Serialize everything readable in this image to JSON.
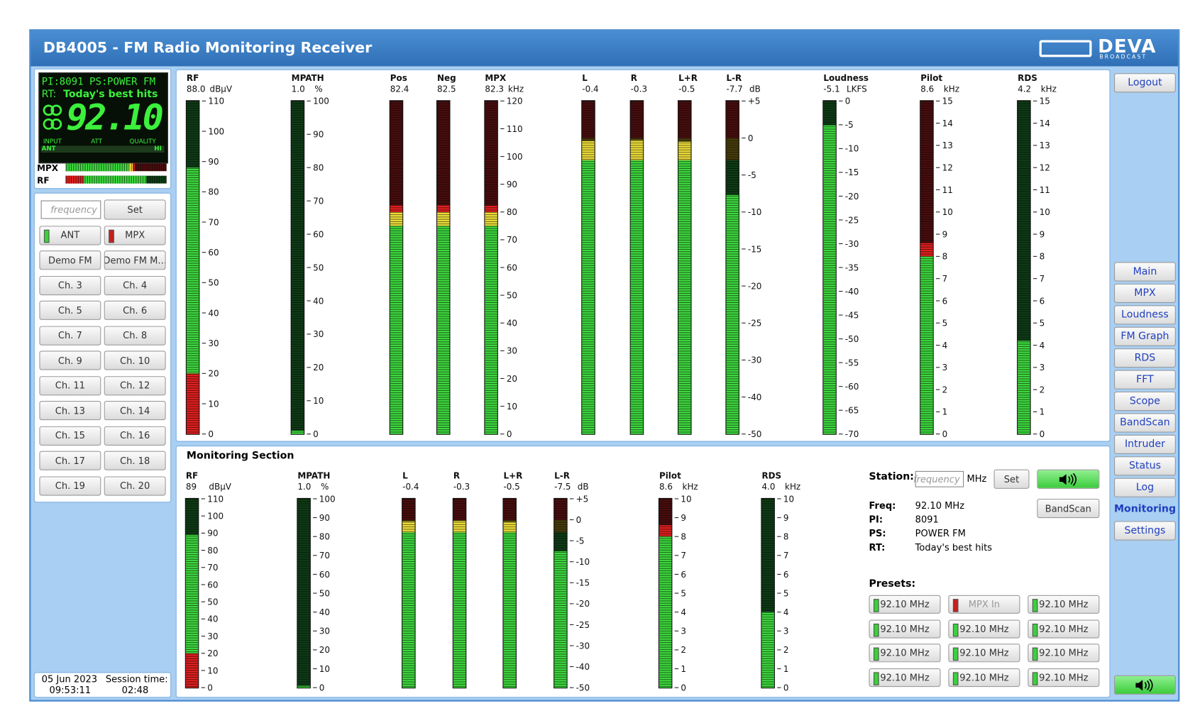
{
  "header": {
    "title": "DB4005 - FM Radio Monitoring Receiver",
    "logo": "DEVA",
    "logo_sub": "BROADCAST"
  },
  "display": {
    "pi_label": "PI:",
    "pi": "8091",
    "ps_label": "PS:",
    "ps": "POWER FM",
    "rt_label": "RT:",
    "rt": "Today's best hits",
    "frequency": "92.10",
    "scale_labels": [
      "INPUT",
      "ATT",
      "QUALITY"
    ],
    "ant": "ANT",
    "hi": "HI",
    "mini_labels": [
      "MPX",
      "RF"
    ]
  },
  "tuner": {
    "input_placeholder": "frequency",
    "set": "Set",
    "buttons": [
      {
        "label": "ANT",
        "led": "#3ad13a"
      },
      {
        "label": "MPX",
        "led": "#c81e1e"
      },
      {
        "label": "Demo FM"
      },
      {
        "label": "Demo FM M..."
      },
      {
        "label": "Ch. 3"
      },
      {
        "label": "Ch. 4"
      },
      {
        "label": "Ch. 5"
      },
      {
        "label": "Ch. 6"
      },
      {
        "label": "Ch. 7"
      },
      {
        "label": "Ch. 8"
      },
      {
        "label": "Ch. 9"
      },
      {
        "label": "Ch. 10"
      },
      {
        "label": "Ch. 11"
      },
      {
        "label": "Ch. 12"
      },
      {
        "label": "Ch. 13"
      },
      {
        "label": "Ch. 14"
      },
      {
        "label": "Ch. 15"
      },
      {
        "label": "Ch. 16"
      },
      {
        "label": "Ch. 17"
      },
      {
        "label": "Ch. 18"
      },
      {
        "label": "Ch. 19"
      },
      {
        "label": "Ch. 20"
      }
    ]
  },
  "status": {
    "date": "05 Jun 2023",
    "time": "09:53:11",
    "session_label": "Session time:",
    "session": "02:48"
  },
  "nav": {
    "logout": "Logout",
    "items": [
      {
        "label": "Main"
      },
      {
        "label": "MPX"
      },
      {
        "label": "Loudness"
      },
      {
        "label": "FM Graph"
      },
      {
        "label": "RDS"
      },
      {
        "label": "FFT"
      },
      {
        "label": "Scope"
      },
      {
        "label": "BandScan"
      },
      {
        "label": "Intruder"
      },
      {
        "label": "Status"
      },
      {
        "label": "Log"
      },
      {
        "label": "Monitoring",
        "active": true
      },
      {
        "label": "Settings"
      }
    ]
  },
  "meters_top": [
    {
      "name": "RF",
      "value": {
        "value": 88.0,
        "label": "88.0"
      },
      "unit": "dBµV",
      "ticks": [
        0,
        10,
        20,
        30,
        40,
        50,
        60,
        70,
        80,
        90,
        100,
        110
      ],
      "low_alarm": 20
    },
    {
      "name": "MPATH",
      "value": {
        "value": 1.0,
        "label": "1.0"
      },
      "unit": "%",
      "ticks": [
        0,
        10,
        20,
        30,
        40,
        50,
        60,
        70,
        80,
        90,
        100
      ]
    },
    {
      "name": "Pos",
      "value": 82.4,
      "warn": 75,
      "alarm": 80
    },
    {
      "name": "Neg",
      "value": 82.5,
      "warn": 75,
      "alarm": 80
    },
    {
      "name": "MPX",
      "value": 82.3,
      "unit": "kHz",
      "ticks": [
        0,
        10,
        20,
        30,
        40,
        50,
        60,
        70,
        80,
        90,
        100,
        110,
        120
      ],
      "warn": 75,
      "alarm": 80
    },
    {
      "name": "L",
      "value": -0.4,
      "warn": -3,
      "alarm": 0
    },
    {
      "name": "R",
      "value": -0.3,
      "warn": -3,
      "alarm": 0
    },
    {
      "name": "L+R",
      "value": -0.5,
      "warn": -3,
      "alarm": 0
    },
    {
      "name": "L-R",
      "value": -7.7,
      "unit": "dB",
      "ticks": [
        -50,
        -40,
        -30,
        -25,
        -20,
        -15,
        -10,
        -5,
        0,
        {
          "value": 5,
          "label": "+5"
        }
      ],
      "warn": -3,
      "alarm": 0
    },
    {
      "name": "Loudness",
      "value": -5.1,
      "unit": "LKFS",
      "ticks": [
        -70,
        -65,
        -60,
        -55,
        -50,
        -45,
        -40,
        -35,
        -30,
        -25,
        -20,
        -15,
        -10,
        -5,
        0
      ]
    },
    {
      "name": "Pilot",
      "value": 8.6,
      "unit": "kHz",
      "ticks": [
        0,
        1,
        2,
        3,
        4,
        5,
        6,
        7,
        8,
        9,
        10,
        11,
        12,
        13,
        14,
        15
      ],
      "alarm": 8
    },
    {
      "name": "RDS",
      "value": 4.2,
      "unit": "kHz",
      "ticks": [
        0,
        1,
        2,
        3,
        4,
        5,
        6,
        7,
        8,
        9,
        10,
        11,
        12,
        13,
        14,
        15
      ]
    }
  ],
  "monitoring": {
    "title": "Monitoring Section",
    "meters": [
      {
        "name": "RF",
        "value": 89,
        "unit": "dBµV",
        "ticks": [
          0,
          10,
          20,
          30,
          40,
          50,
          60,
          70,
          80,
          90,
          100,
          110
        ],
        "low_alarm": 20
      },
      {
        "name": "MPATH",
        "value": {
          "value": 1.0,
          "label": "1.0"
        },
        "unit": "%",
        "ticks": [
          0,
          10,
          20,
          30,
          40,
          50,
          60,
          70,
          80,
          90,
          100
        ]
      },
      {
        "name": "L",
        "value": -0.4,
        "warn": -3,
        "alarm": 0
      },
      {
        "name": "R",
        "value": -0.3,
        "warn": -3,
        "alarm": 0
      },
      {
        "name": "L+R",
        "value": -0.5,
        "warn": -3,
        "alarm": 0
      },
      {
        "name": "L-R",
        "value": -7.5,
        "unit": "dB",
        "ticks": [
          -50,
          -40,
          -30,
          -25,
          -20,
          -15,
          -10,
          -5,
          0,
          {
            "value": 5,
            "label": "+5"
          }
        ],
        "warn": -3,
        "alarm": 0
      },
      {
        "name": "Pilot",
        "value": 8.6,
        "unit": "kHz",
        "ticks": [
          0,
          1,
          2,
          3,
          4,
          5,
          6,
          7,
          8,
          9,
          10
        ],
        "alarm": 8
      },
      {
        "name": "RDS",
        "value": {
          "value": 4.0,
          "label": "4.0"
        },
        "unit": "kHz",
        "ticks": [
          0,
          1,
          2,
          3,
          4,
          5,
          6,
          7,
          8,
          9,
          10
        ]
      }
    ],
    "station_label": "Station:",
    "input_placeholder": "frequency",
    "unit": "MHz",
    "set": "Set",
    "bandscan": "BandScan",
    "info": [
      {
        "label": "Freq:",
        "value": "92.10 MHz"
      },
      {
        "label": "PI:",
        "value": "8091"
      },
      {
        "label": "PS:",
        "value": "POWER FM"
      },
      {
        "label": "RT:",
        "value": "Today's best hits"
      }
    ],
    "presets_label": "Presets:",
    "presets": [
      {
        "label": "92.10 MHz",
        "led": "#3ad13a"
      },
      {
        "label": "MPX In",
        "led": "#c81e1e",
        "disabled": true
      },
      {
        "label": "92.10 MHz",
        "led": "#3ad13a"
      },
      {
        "label": "92.10 MHz",
        "led": "#3ad13a"
      },
      {
        "label": "92.10 MHz",
        "led": "#3ad13a"
      },
      {
        "label": "92.10 MHz",
        "led": "#3ad13a"
      },
      {
        "label": "92.10 MHz",
        "led": "#3ad13a"
      },
      {
        "label": "92.10 MHz",
        "led": "#3ad13a"
      },
      {
        "label": "92.10 MHz",
        "led": "#3ad13a"
      },
      {
        "label": "92.10 MHz",
        "led": "#3ad13a"
      },
      {
        "label": "92.10 MHz",
        "led": "#3ad13a"
      },
      {
        "label": "92.10 MHz",
        "led": "#3ad13a"
      }
    ]
  }
}
